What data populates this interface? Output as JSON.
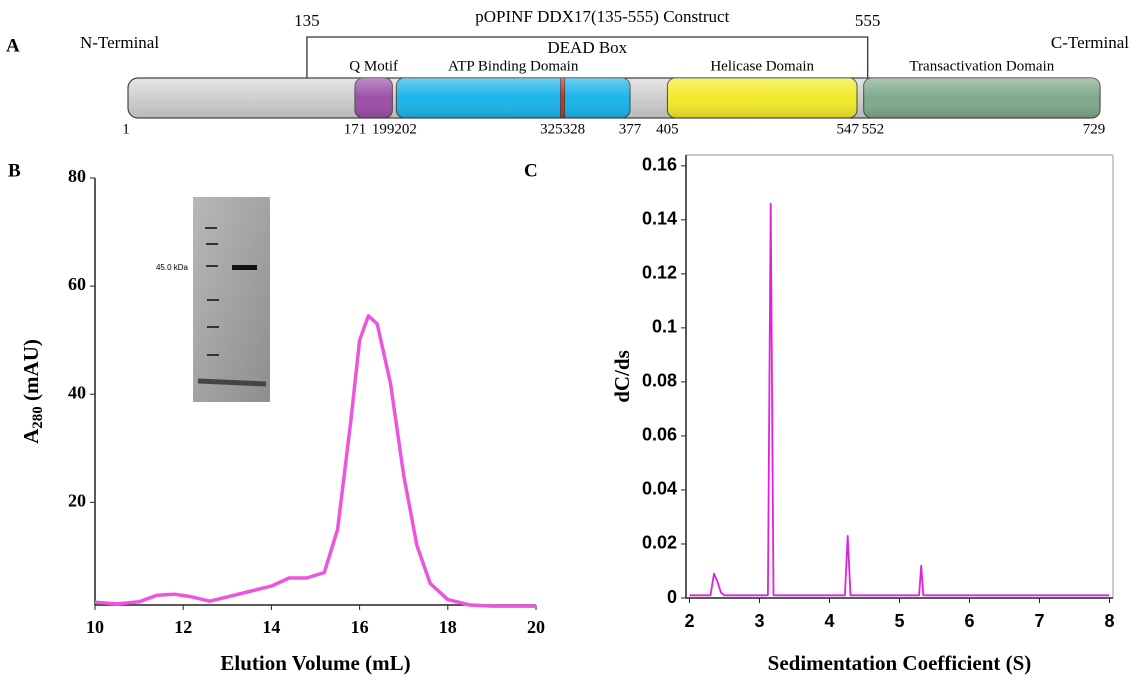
{
  "diagram": {
    "panel_label": "A",
    "title": "pOPINF DDX17(135-555) Construct",
    "construct": {
      "start": 135,
      "end": 555,
      "label": "DEAD Box"
    },
    "n_label": "N-Terminal",
    "c_label": "C-Terminal",
    "residue_ticks": [
      1,
      171,
      199,
      202,
      325,
      328,
      377,
      405,
      547,
      552,
      729
    ],
    "domains": [
      {
        "name": "Q Motif",
        "start": 171,
        "end": 199,
        "color": "#9b4fa8"
      },
      {
        "name": "ATP Binding  Domain",
        "start": 202,
        "end": 377,
        "color": "#1ab4ea"
      },
      {
        "start": 325,
        "end": 328,
        "color": "#d42a20"
      },
      {
        "name": "Helicase Domain",
        "start": 405,
        "end": 547,
        "color": "#f2ea2a"
      },
      {
        "name": "Transactivation Domain",
        "start": 552,
        "end": 729,
        "color": "#7fa98a"
      }
    ]
  },
  "chart_data": [
    {
      "type": "line",
      "panel_label": "B",
      "xlabel": "Elution Volume  (mL)",
      "ylabel": "A",
      "ylabel_sub": "280",
      "ylabel_unit": " (mAU)",
      "inset_label": "45.0 kDa",
      "x": [
        10,
        10.5,
        11,
        11.4,
        11.8,
        12.2,
        12.6,
        13,
        13.5,
        14,
        14.4,
        14.8,
        15.2,
        15.5,
        15.8,
        16.0,
        16.2,
        16.4,
        16.7,
        17,
        17.3,
        17.6,
        18,
        18.5,
        19,
        20
      ],
      "series": [
        {
          "color": "#ee55dd",
          "values": [
            1.5,
            1.2,
            1.6,
            2.8,
            3.0,
            2.5,
            1.7,
            2.5,
            3.5,
            4.5,
            6,
            6,
            7,
            15,
            35,
            50,
            54.5,
            53,
            42,
            25,
            12,
            5,
            2,
            1,
            0.8,
            0.8
          ]
        }
      ],
      "xlim": [
        10,
        20
      ],
      "ylim": [
        1,
        80
      ],
      "xticks": [
        10,
        12,
        14,
        16,
        18,
        20
      ],
      "yticks": [
        20,
        40,
        60,
        80
      ]
    },
    {
      "type": "line",
      "panel_label": "C",
      "xlabel": "Sedimentation Coefficient (S)",
      "ylabel": "dC/ds",
      "x": [
        2,
        2.3,
        2.35,
        2.4,
        2.45,
        2.5,
        3.12,
        3.16,
        3.2,
        4.22,
        4.26,
        4.3,
        5.28,
        5.31,
        5.34,
        8
      ],
      "series": [
        {
          "color": "#e020e0",
          "values": [
            0.001,
            0.001,
            0.009,
            0.006,
            0.002,
            0.001,
            0.001,
            0.146,
            0.001,
            0.001,
            0.023,
            0.001,
            0.001,
            0.012,
            0.001,
            0.001
          ]
        }
      ],
      "xlim": [
        1.95,
        8.05
      ],
      "ylim": [
        0,
        0.164
      ],
      "xticks": [
        2,
        3,
        4,
        5,
        6,
        7,
        8
      ],
      "yticks": [
        0,
        0.02,
        0.04,
        0.06,
        0.08,
        0.1,
        0.12,
        0.14,
        0.16
      ]
    }
  ]
}
